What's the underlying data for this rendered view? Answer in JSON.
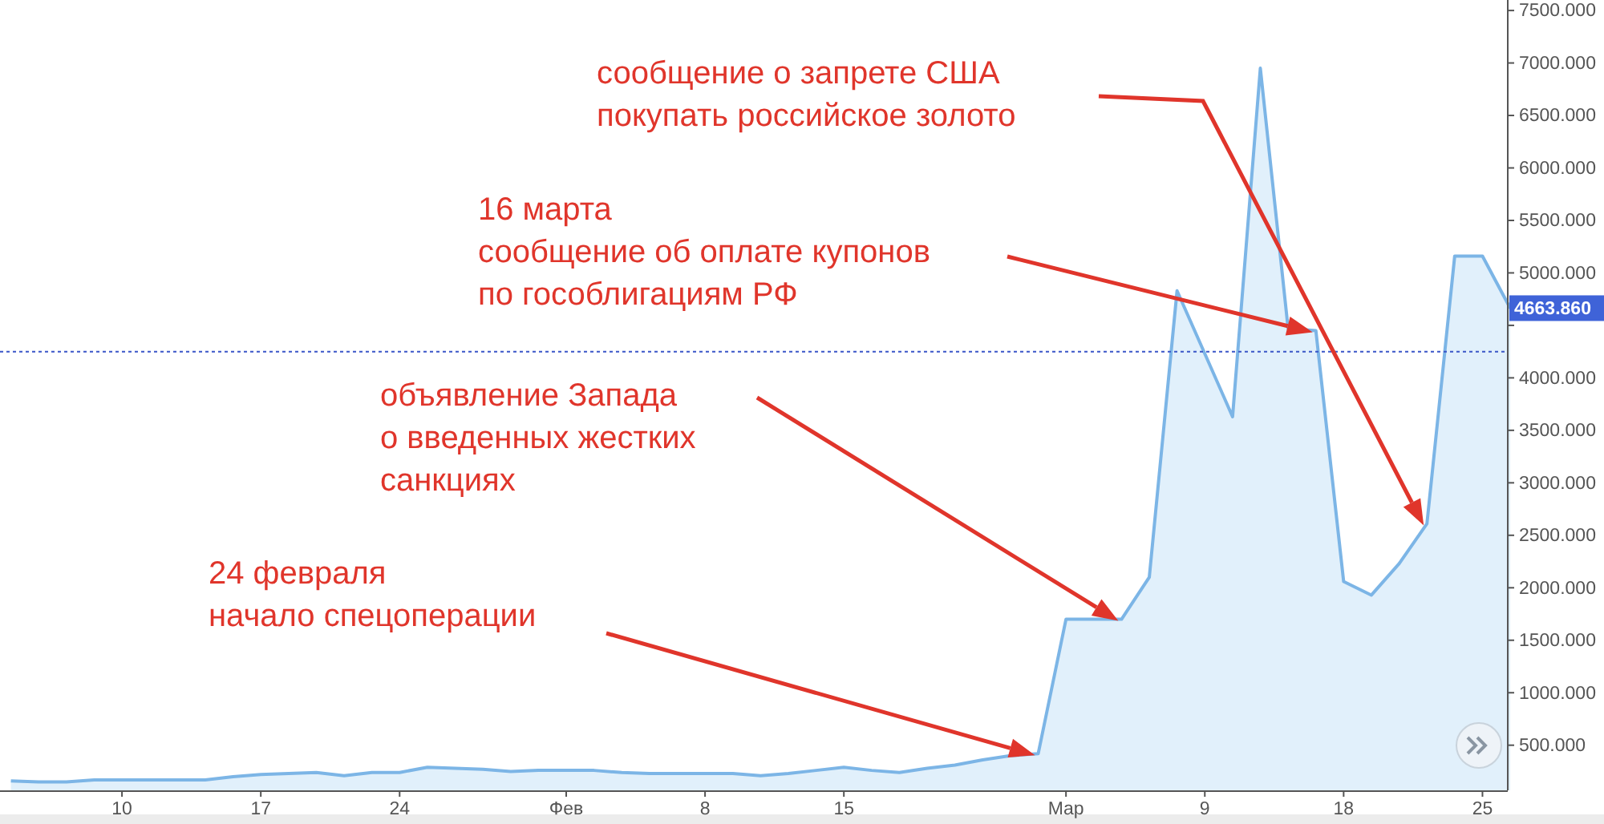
{
  "chart_data": {
    "type": "area",
    "categories": [
      null,
      null,
      null,
      null,
      "10",
      null,
      null,
      null,
      null,
      "17",
      null,
      null,
      null,
      null,
      "24",
      null,
      null,
      null,
      null,
      null,
      "Фев",
      null,
      null,
      null,
      null,
      "8",
      null,
      null,
      null,
      null,
      "15",
      null,
      null,
      null,
      null,
      null,
      null,
      null,
      "Мар",
      null,
      null,
      null,
      null,
      "9",
      null,
      null,
      null,
      null,
      "18",
      null,
      null,
      null,
      null,
      "25",
      null
    ],
    "series": [
      {
        "color": "#7cb5e6",
        "values": [
          160,
          150,
          150,
          170,
          170,
          170,
          170,
          170,
          200,
          220,
          230,
          240,
          210,
          240,
          240,
          290,
          280,
          270,
          250,
          260,
          260,
          260,
          240,
          230,
          230,
          230,
          230,
          210,
          230,
          260,
          290,
          260,
          240,
          280,
          310,
          360,
          400,
          420,
          1700,
          1700,
          1700,
          2100,
          4830,
          4230,
          3630,
          6950,
          4470,
          4450,
          2060,
          1930,
          2230,
          2610,
          5160,
          5160,
          4663.86
        ]
      }
    ],
    "ylim": [
      70,
      7600
    ],
    "yticks": [
      {
        "value": 500,
        "label": "500.000"
      },
      {
        "value": 1000,
        "label": "1000.000"
      },
      {
        "value": 1500,
        "label": "1500.000"
      },
      {
        "value": 2000,
        "label": "2000.000"
      },
      {
        "value": 2500,
        "label": "2500.000"
      },
      {
        "value": 3000,
        "label": "3000.000"
      },
      {
        "value": 3500,
        "label": "3500.000"
      },
      {
        "value": 4000,
        "label": "4000.000"
      },
      {
        "value": 4500,
        "label": null
      },
      {
        "value": 5000,
        "label": "5000.000"
      },
      {
        "value": 5500,
        "label": "5500.000"
      },
      {
        "value": 6000,
        "label": "6000.000"
      },
      {
        "value": 6500,
        "label": "6500.000"
      },
      {
        "value": 7000,
        "label": "7000.000"
      },
      {
        "value": 7500,
        "label": "7500.000"
      }
    ],
    "grid": false,
    "ref_lines": [
      {
        "axis": "y",
        "value": 4250,
        "color": "#3a56c8",
        "line_style": "dotted"
      }
    ],
    "annotations": [
      "сообщение о запрете США\nпокупать российское золото",
      "16 марта\nсообщение об оплате купонов\nпо гособлигациям РФ",
      "объявление Запада\nо введенных жестких\nсанкциях",
      "24 февраля\nначало спецоперации",
      "4663.860"
    ]
  }
}
